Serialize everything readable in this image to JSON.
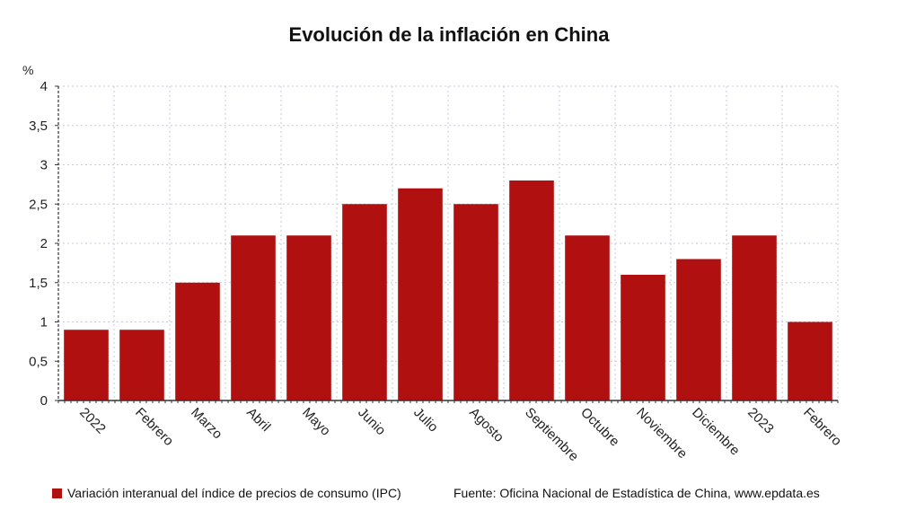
{
  "chart_data": {
    "type": "bar",
    "title": "Evolución de la inflación en China",
    "ylabel": "%",
    "xlabel": "",
    "ylim": [
      0,
      4
    ],
    "yticks": [
      0,
      0.5,
      1,
      1.5,
      2,
      2.5,
      3,
      3.5,
      4
    ],
    "ytick_labels": [
      "0",
      "0,5",
      "1",
      "1,5",
      "2",
      "2,5",
      "3",
      "3,5",
      "4"
    ],
    "categories": [
      "2022",
      "Febrero",
      "Marzo",
      "Abril",
      "Mayo",
      "Junio",
      "Julio",
      "Agosto",
      "Septiembre",
      "Octubre",
      "Noviembre",
      "Diciembre",
      "2023",
      "Febrero"
    ],
    "series": [
      {
        "name": "Variación interanual del índice de precios de consumo (IPC)",
        "values": [
          0.9,
          0.9,
          1.5,
          2.1,
          2.1,
          2.5,
          2.7,
          2.5,
          2.8,
          2.1,
          1.6,
          1.8,
          2.1,
          1.0
        ]
      }
    ],
    "grid": true,
    "legend_position": "bottom-left",
    "colors": {
      "bar": "#b01010",
      "grid": "#c9c9d9",
      "axis": "#333333"
    }
  },
  "footer": {
    "legend_label": "Variación interanual del índice de precios de consumo (IPC)",
    "source": "Fuente: Oficina Nacional de Estadística de China, www.epdata.es"
  }
}
